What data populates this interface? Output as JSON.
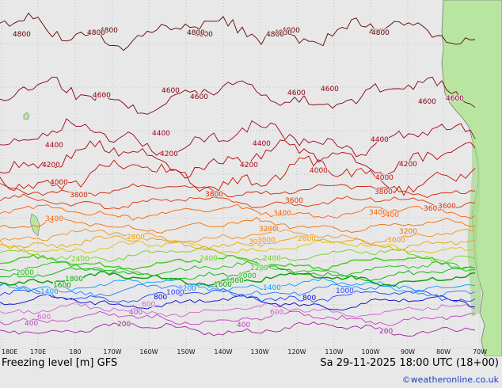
{
  "map": {
    "title": "Freezing level [m] GFS",
    "valid_time": "Sa 29-11-2025 18:00 UTC (18+00)",
    "credit": "©weatheronline.co.uk",
    "longitude_ticks": [
      "180E",
      "170E",
      "180",
      "170W",
      "160W",
      "150W",
      "140W",
      "130W",
      "120W",
      "110W",
      "100W",
      "90W",
      "80W",
      "70W"
    ],
    "colors": {
      "ocean": "#e8e8e8",
      "land": "#b8e6a0",
      "coast": "#7a7a7a",
      "grid": "#999999"
    },
    "contour_levels": [
      {
        "value": 200,
        "color": "#a020a0"
      },
      {
        "value": 400,
        "color": "#c040c0"
      },
      {
        "value": 600,
        "color": "#d060d0"
      },
      {
        "value": 800,
        "color": "#0000cc"
      },
      {
        "value": 1000,
        "color": "#2040ff"
      },
      {
        "value": 1200,
        "color": "#2080ff"
      },
      {
        "value": 1400,
        "color": "#00a0ff"
      },
      {
        "value": 1600,
        "color": "#00a000"
      },
      {
        "value": 1800,
        "color": "#00b000"
      },
      {
        "value": 2000,
        "color": "#10c010"
      },
      {
        "value": 2200,
        "color": "#40cc20"
      },
      {
        "value": 2400,
        "color": "#70d020"
      },
      {
        "value": 2600,
        "color": "#e0c000"
      },
      {
        "value": 2800,
        "color": "#f0a000"
      },
      {
        "value": 3000,
        "color": "#f09020"
      },
      {
        "value": 3200,
        "color": "#f07000"
      },
      {
        "value": 3400,
        "color": "#ff6000"
      },
      {
        "value": 3600,
        "color": "#e03000"
      },
      {
        "value": 3800,
        "color": "#d02000"
      },
      {
        "value": 4000,
        "color": "#c01000"
      },
      {
        "value": 4200,
        "color": "#b00010"
      },
      {
        "value": 4400,
        "color": "#a00020"
      },
      {
        "value": 4600,
        "color": "#800010"
      },
      {
        "value": 4800,
        "color": "#600000"
      }
    ],
    "labels": [
      {
        "text": "4600",
        "level": 4600
      },
      {
        "text": "4800",
        "level": 4800
      },
      {
        "text": "4800",
        "level": 4800
      },
      {
        "text": "4800",
        "level": 4800
      },
      {
        "text": "4800",
        "level": 4800
      },
      {
        "text": "4800",
        "level": 4800
      },
      {
        "text": "4800",
        "level": 4800
      },
      {
        "text": "4800",
        "level": 4800
      },
      {
        "text": "4600",
        "level": 4600
      },
      {
        "text": "4800",
        "level": 4800
      },
      {
        "text": "4600",
        "level": 4600
      },
      {
        "text": "4400",
        "level": 4400
      },
      {
        "text": "4200",
        "level": 4200
      },
      {
        "text": "3800",
        "level": 3800
      },
      {
        "text": "4600",
        "level": 4600
      },
      {
        "text": "4400",
        "level": 4400
      },
      {
        "text": "4600",
        "level": 4600
      },
      {
        "text": "4800",
        "level": 4800
      },
      {
        "text": "4600",
        "level": 4600
      },
      {
        "text": "4400",
        "level": 4400
      },
      {
        "text": "4200",
        "level": 4200
      },
      {
        "text": "4000",
        "level": 4000
      },
      {
        "text": "3800",
        "level": 3800
      },
      {
        "text": "3600",
        "level": 3600
      },
      {
        "text": "3400",
        "level": 3400
      },
      {
        "text": "3200",
        "level": 3200
      },
      {
        "text": "3000",
        "level": 3000
      },
      {
        "text": "3400",
        "level": 3400
      },
      {
        "text": "3800",
        "level": 3800
      },
      {
        "text": "3600",
        "level": 3600
      },
      {
        "text": "3400",
        "level": 3400
      },
      {
        "text": "3200",
        "level": 3200
      },
      {
        "text": "3000",
        "level": 3000
      },
      {
        "text": "2800",
        "level": 2800
      },
      {
        "text": "2400",
        "level": 2400
      },
      {
        "text": "2200",
        "level": 2200
      },
      {
        "text": "2000",
        "level": 2000
      },
      {
        "text": "1800",
        "level": 1800
      },
      {
        "text": "1600",
        "level": 1600
      },
      {
        "text": "1200",
        "level": 1200
      },
      {
        "text": "1000",
        "level": 1000
      },
      {
        "text": "800",
        "level": 800
      },
      {
        "text": "600",
        "level": 600
      },
      {
        "text": "400",
        "level": 400
      },
      {
        "text": "200",
        "level": 200
      },
      {
        "text": "1400",
        "level": 1400
      },
      {
        "text": "400",
        "level": 400
      },
      {
        "text": "600",
        "level": 600
      },
      {
        "text": "800",
        "level": 800
      },
      {
        "text": "1000",
        "level": 1000
      },
      {
        "text": "2000",
        "level": 2000
      },
      {
        "text": "2400",
        "level": 2400
      },
      {
        "text": "2800",
        "level": 2800
      },
      {
        "text": "3200",
        "level": 3200
      },
      {
        "text": "3400",
        "level": 3400
      },
      {
        "text": "3000",
        "level": 3000
      },
      {
        "text": "2400",
        "level": 2400
      },
      {
        "text": "1800",
        "level": 1800
      },
      {
        "text": "1600",
        "level": 1600
      },
      {
        "text": "1400",
        "level": 1400
      },
      {
        "text": "600",
        "level": 600
      },
      {
        "text": "400",
        "level": 400
      },
      {
        "text": "200",
        "level": 200
      },
      {
        "text": "4000",
        "level": 4000
      },
      {
        "text": "4200",
        "level": 4200
      },
      {
        "text": "4400",
        "level": 4400
      },
      {
        "text": "3600",
        "level": 3600
      },
      {
        "text": "4000",
        "level": 4000
      },
      {
        "text": "4200",
        "level": 4200
      },
      {
        "text": "4600",
        "level": 4600
      },
      {
        "text": "4800",
        "level": 4800
      }
    ]
  }
}
